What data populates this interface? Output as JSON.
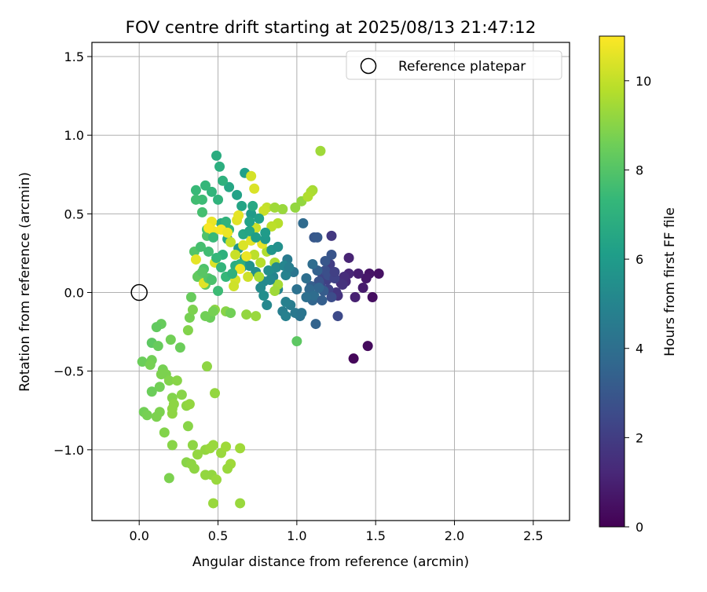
{
  "chart_data": {
    "type": "scatter",
    "title": "FOV centre drift starting at 2025/08/13 21:47:12",
    "xlabel": "Angular distance from reference (arcmin)",
    "ylabel": "Rotation from reference (arcmin)",
    "xlim": [
      -0.3,
      2.73
    ],
    "ylim": [
      -1.45,
      1.59
    ],
    "xticks": [
      0.0,
      0.5,
      1.0,
      1.5,
      2.0,
      2.5
    ],
    "xtick_labels": [
      "0.0",
      "0.5",
      "1.0",
      "1.5",
      "2.0",
      "2.5"
    ],
    "yticks": [
      -1.0,
      -0.5,
      0.0,
      0.5,
      1.0,
      1.5
    ],
    "ytick_labels": [
      "−1.0",
      "−0.5",
      "0.0",
      "0.5",
      "1.0",
      "1.5"
    ],
    "grid": true,
    "legend": {
      "position": "top-right",
      "entries": [
        {
          "label": "Reference platepar",
          "marker": "open-circle"
        }
      ]
    },
    "reference_point": {
      "x": 0.0,
      "y": 0.0
    },
    "colorbar": {
      "label": "Hours from first FF file",
      "range": [
        0,
        11
      ],
      "ticks": [
        0,
        2,
        4,
        6,
        8,
        10
      ],
      "tick_labels": [
        "0",
        "2",
        "4",
        "6",
        "8",
        "10"
      ],
      "colormap": "viridis"
    },
    "points": [
      {
        "x": 1.36,
        "y": -0.42,
        "t": 0.2
      },
      {
        "x": 1.45,
        "y": -0.34,
        "t": 0.3
      },
      {
        "x": 1.48,
        "y": -0.03,
        "t": 0.4
      },
      {
        "x": 1.52,
        "y": 0.12,
        "t": 0.5
      },
      {
        "x": 1.46,
        "y": 0.12,
        "t": 0.6
      },
      {
        "x": 1.44,
        "y": 0.09,
        "t": 0.7
      },
      {
        "x": 1.42,
        "y": 0.03,
        "t": 0.8
      },
      {
        "x": 1.39,
        "y": 0.12,
        "t": 0.9
      },
      {
        "x": 1.37,
        "y": -0.03,
        "t": 1.0
      },
      {
        "x": 1.33,
        "y": 0.22,
        "t": 1.1
      },
      {
        "x": 1.33,
        "y": 0.12,
        "t": 1.2
      },
      {
        "x": 1.31,
        "y": 0.07,
        "t": 1.3
      },
      {
        "x": 1.3,
        "y": 0.1,
        "t": 1.4
      },
      {
        "x": 1.28,
        "y": 0.06,
        "t": 1.5
      },
      {
        "x": 1.26,
        "y": -0.02,
        "t": 1.6
      },
      {
        "x": 1.25,
        "y": 0.0,
        "t": 1.7
      },
      {
        "x": 1.22,
        "y": 0.36,
        "t": 1.8
      },
      {
        "x": 1.21,
        "y": 0.14,
        "t": 1.9
      },
      {
        "x": 1.21,
        "y": 0.18,
        "t": 2.0
      },
      {
        "x": 1.19,
        "y": 0.08,
        "t": 2.1
      },
      {
        "x": 1.2,
        "y": 0.02,
        "t": 2.2
      },
      {
        "x": 1.16,
        "y": 0.12,
        "t": 2.3
      },
      {
        "x": 1.15,
        "y": 0.04,
        "t": 2.4
      },
      {
        "x": 1.26,
        "y": -0.15,
        "t": 2.5
      },
      {
        "x": 1.22,
        "y": -0.03,
        "t": 2.6
      },
      {
        "x": 1.18,
        "y": 0.14,
        "t": 2.7
      },
      {
        "x": 1.14,
        "y": 0.07,
        "t": 2.8
      },
      {
        "x": 1.22,
        "y": 0.24,
        "t": 2.9
      },
      {
        "x": 1.11,
        "y": 0.35,
        "t": 3.0
      },
      {
        "x": 1.13,
        "y": 0.35,
        "t": 3.1
      },
      {
        "x": 1.17,
        "y": 0.01,
        "t": 3.2
      },
      {
        "x": 1.09,
        "y": 0.04,
        "t": 3.3
      },
      {
        "x": 1.13,
        "y": 0.14,
        "t": 3.4
      },
      {
        "x": 1.12,
        "y": -0.2,
        "t": 3.5
      },
      {
        "x": 1.1,
        "y": -0.05,
        "t": 3.6
      },
      {
        "x": 1.08,
        "y": 0.02,
        "t": 3.7
      },
      {
        "x": 1.04,
        "y": 0.44,
        "t": 3.8
      },
      {
        "x": 1.1,
        "y": 0.18,
        "t": 3.9
      },
      {
        "x": 1.06,
        "y": 0.09,
        "t": 4.0
      },
      {
        "x": 1.0,
        "y": 0.02,
        "t": 4.1
      },
      {
        "x": 1.02,
        "y": -0.15,
        "t": 4.2
      },
      {
        "x": 0.98,
        "y": 0.13,
        "t": 4.3
      },
      {
        "x": 0.99,
        "y": -0.13,
        "t": 4.4
      },
      {
        "x": 0.94,
        "y": 0.21,
        "t": 4.5
      },
      {
        "x": 0.96,
        "y": -0.08,
        "t": 4.6
      },
      {
        "x": 0.91,
        "y": -0.12,
        "t": 4.7
      },
      {
        "x": 0.93,
        "y": -0.15,
        "t": 4.8
      },
      {
        "x": 0.88,
        "y": 0.02,
        "t": 4.9
      },
      {
        "x": 0.85,
        "y": 0.1,
        "t": 5.0
      },
      {
        "x": 0.81,
        "y": -0.08,
        "t": 5.1
      },
      {
        "x": 0.79,
        "y": 0.07,
        "t": 5.2
      },
      {
        "x": 0.77,
        "y": 0.03,
        "t": 5.3
      },
      {
        "x": 0.79,
        "y": -0.02,
        "t": 5.4
      },
      {
        "x": 0.74,
        "y": 0.13,
        "t": 5.5
      },
      {
        "x": 0.7,
        "y": 0.17,
        "t": 5.6
      },
      {
        "x": 0.67,
        "y": 0.22,
        "t": 5.7
      },
      {
        "x": 0.63,
        "y": 0.28,
        "t": 5.8
      },
      {
        "x": 0.65,
        "y": 0.16,
        "t": 5.9
      },
      {
        "x": 0.71,
        "y": 0.5,
        "t": 6.0
      },
      {
        "x": 0.73,
        "y": 0.41,
        "t": 6.1
      },
      {
        "x": 0.67,
        "y": 0.76,
        "t": 6.2
      },
      {
        "x": 0.62,
        "y": 0.62,
        "t": 6.3
      },
      {
        "x": 0.65,
        "y": 0.55,
        "t": 6.4
      },
      {
        "x": 0.57,
        "y": 0.67,
        "t": 6.5
      },
      {
        "x": 0.56,
        "y": 0.34,
        "t": 6.6
      },
      {
        "x": 0.52,
        "y": 0.44,
        "t": 6.7
      },
      {
        "x": 0.49,
        "y": 0.87,
        "t": 6.8
      },
      {
        "x": 0.51,
        "y": 0.8,
        "t": 6.9
      },
      {
        "x": 0.53,
        "y": 0.71,
        "t": 7.0
      },
      {
        "x": 0.5,
        "y": 0.59,
        "t": 7.1
      },
      {
        "x": 0.46,
        "y": 0.64,
        "t": 7.2
      },
      {
        "x": 0.42,
        "y": 0.68,
        "t": 7.3
      },
      {
        "x": 0.36,
        "y": 0.65,
        "t": 7.4
      },
      {
        "x": 0.4,
        "y": 0.59,
        "t": 7.5
      },
      {
        "x": 0.36,
        "y": 0.59,
        "t": 7.6
      },
      {
        "x": 0.4,
        "y": 0.51,
        "t": 7.7
      },
      {
        "x": 0.43,
        "y": 0.4,
        "t": 7.8
      },
      {
        "x": 0.43,
        "y": 0.36,
        "t": 7.9
      },
      {
        "x": 0.35,
        "y": 0.26,
        "t": 8.0
      },
      {
        "x": 0.38,
        "y": 0.11,
        "t": 8.1
      },
      {
        "x": 0.42,
        "y": 0.05,
        "t": 8.2
      },
      {
        "x": 0.37,
        "y": 0.1,
        "t": 8.3
      },
      {
        "x": 0.33,
        "y": -0.03,
        "t": 8.4
      },
      {
        "x": 0.45,
        "y": -0.16,
        "t": 8.5
      },
      {
        "x": 0.42,
        "y": -0.15,
        "t": 8.6
      },
      {
        "x": 0.32,
        "y": -0.16,
        "t": 8.7
      },
      {
        "x": 0.34,
        "y": -0.11,
        "t": 8.8
      },
      {
        "x": 0.31,
        "y": -0.24,
        "t": 8.9
      },
      {
        "x": 0.55,
        "y": -0.12,
        "t": 9.0
      },
      {
        "x": 0.48,
        "y": -0.11,
        "t": 9.1
      },
      {
        "x": 0.68,
        "y": -0.14,
        "t": 9.2
      },
      {
        "x": 0.74,
        "y": -0.15,
        "t": 9.3
      },
      {
        "x": 1.0,
        "y": -0.31,
        "t": 8.2
      },
      {
        "x": 1.03,
        "y": 0.58,
        "t": 9.2
      },
      {
        "x": 1.1,
        "y": 0.65,
        "t": 9.5
      },
      {
        "x": 1.15,
        "y": 0.9,
        "t": 9.4
      },
      {
        "x": 1.09,
        "y": 0.64,
        "t": 9.6
      },
      {
        "x": 1.07,
        "y": 0.61,
        "t": 9.7
      },
      {
        "x": 0.88,
        "y": 0.44,
        "t": 9.8
      },
      {
        "x": 0.84,
        "y": 0.42,
        "t": 9.9
      },
      {
        "x": 0.81,
        "y": 0.54,
        "t": 10.0
      },
      {
        "x": 0.79,
        "y": 0.52,
        "t": 10.1
      },
      {
        "x": 0.74,
        "y": 0.41,
        "t": 10.2
      },
      {
        "x": 0.71,
        "y": 0.74,
        "t": 10.3
      },
      {
        "x": 0.73,
        "y": 0.66,
        "t": 10.4
      },
      {
        "x": 0.62,
        "y": 0.46,
        "t": 10.5
      },
      {
        "x": 0.63,
        "y": 0.49,
        "t": 10.6
      },
      {
        "x": 0.46,
        "y": 0.45,
        "t": 10.7
      },
      {
        "x": 0.47,
        "y": 0.39,
        "t": 10.8
      },
      {
        "x": 0.44,
        "y": 0.41,
        "t": 10.9
      },
      {
        "x": 0.36,
        "y": 0.21,
        "t": 10.6
      },
      {
        "x": 0.41,
        "y": 0.06,
        "t": 10.5
      },
      {
        "x": 0.48,
        "y": 0.19,
        "t": 10.4
      },
      {
        "x": 0.61,
        "y": 0.08,
        "t": 10.3
      },
      {
        "x": 0.69,
        "y": 0.1,
        "t": 10.2
      },
      {
        "x": 0.61,
        "y": 0.24,
        "t": 10.1
      },
      {
        "x": 0.58,
        "y": 0.32,
        "t": 10.0
      },
      {
        "x": 0.73,
        "y": 0.24,
        "t": 9.9
      },
      {
        "x": 0.77,
        "y": 0.19,
        "t": 9.8
      },
      {
        "x": 0.81,
        "y": 0.26,
        "t": 9.7
      },
      {
        "x": 0.86,
        "y": 0.19,
        "t": 9.6
      },
      {
        "x": 0.88,
        "y": 0.05,
        "t": 9.5
      },
      {
        "x": 0.86,
        "y": 0.01,
        "t": 9.4
      },
      {
        "x": 0.76,
        "y": 0.1,
        "t": 9.6
      },
      {
        "x": 0.91,
        "y": 0.53,
        "t": 9.3
      },
      {
        "x": 0.99,
        "y": 0.54,
        "t": 9.2
      },
      {
        "x": 0.86,
        "y": 0.54,
        "t": 9.4
      },
      {
        "x": 0.2,
        "y": -0.3,
        "t": 8.6
      },
      {
        "x": 0.26,
        "y": -0.35,
        "t": 8.5
      },
      {
        "x": 0.14,
        "y": -0.2,
        "t": 8.4
      },
      {
        "x": 0.11,
        "y": -0.22,
        "t": 8.3
      },
      {
        "x": 0.08,
        "y": -0.32,
        "t": 8.2
      },
      {
        "x": 0.12,
        "y": -0.34,
        "t": 8.4
      },
      {
        "x": 0.02,
        "y": -0.44,
        "t": 8.5
      },
      {
        "x": 0.08,
        "y": -0.43,
        "t": 8.6
      },
      {
        "x": 0.07,
        "y": -0.46,
        "t": 8.7
      },
      {
        "x": 0.15,
        "y": -0.49,
        "t": 8.7
      },
      {
        "x": 0.17,
        "y": -0.52,
        "t": 8.8
      },
      {
        "x": 0.14,
        "y": -0.52,
        "t": 8.8
      },
      {
        "x": 0.19,
        "y": -0.56,
        "t": 8.9
      },
      {
        "x": 0.08,
        "y": -0.63,
        "t": 8.5
      },
      {
        "x": 0.13,
        "y": -0.6,
        "t": 8.6
      },
      {
        "x": 0.21,
        "y": -0.67,
        "t": 8.9
      },
      {
        "x": 0.24,
        "y": -0.56,
        "t": 9.0
      },
      {
        "x": 0.27,
        "y": -0.65,
        "t": 9.0
      },
      {
        "x": 0.22,
        "y": -0.71,
        "t": 9.1
      },
      {
        "x": 0.3,
        "y": -0.72,
        "t": 9.1
      },
      {
        "x": 0.32,
        "y": -0.71,
        "t": 9.2
      },
      {
        "x": 0.21,
        "y": -0.74,
        "t": 9.1
      },
      {
        "x": 0.21,
        "y": -0.77,
        "t": 9.1
      },
      {
        "x": 0.03,
        "y": -0.76,
        "t": 8.6
      },
      {
        "x": 0.05,
        "y": -0.78,
        "t": 8.7
      },
      {
        "x": 0.13,
        "y": -0.76,
        "t": 8.8
      },
      {
        "x": 0.11,
        "y": -0.79,
        "t": 8.8
      },
      {
        "x": 0.16,
        "y": -0.89,
        "t": 8.9
      },
      {
        "x": 0.31,
        "y": -0.85,
        "t": 9.0
      },
      {
        "x": 0.21,
        "y": -0.97,
        "t": 9.0
      },
      {
        "x": 0.34,
        "y": -0.97,
        "t": 9.1
      },
      {
        "x": 0.37,
        "y": -1.03,
        "t": 9.2
      },
      {
        "x": 0.42,
        "y": -1.0,
        "t": 9.2
      },
      {
        "x": 0.47,
        "y": -0.97,
        "t": 9.3
      },
      {
        "x": 0.45,
        "y": -0.99,
        "t": 9.3
      },
      {
        "x": 0.52,
        "y": -1.02,
        "t": 9.3
      },
      {
        "x": 0.55,
        "y": -0.98,
        "t": 9.4
      },
      {
        "x": 0.64,
        "y": -0.99,
        "t": 9.4
      },
      {
        "x": 0.58,
        "y": -1.09,
        "t": 9.4
      },
      {
        "x": 0.56,
        "y": -1.12,
        "t": 9.3
      },
      {
        "x": 0.3,
        "y": -1.08,
        "t": 9.0
      },
      {
        "x": 0.33,
        "y": -1.09,
        "t": 9.1
      },
      {
        "x": 0.35,
        "y": -1.12,
        "t": 9.1
      },
      {
        "x": 0.42,
        "y": -1.16,
        "t": 9.2
      },
      {
        "x": 0.46,
        "y": -1.16,
        "t": 9.2
      },
      {
        "x": 0.49,
        "y": -1.19,
        "t": 9.3
      },
      {
        "x": 0.19,
        "y": -1.18,
        "t": 8.8
      },
      {
        "x": 0.48,
        "y": -0.64,
        "t": 9.2
      },
      {
        "x": 0.43,
        "y": -0.47,
        "t": 9.1
      },
      {
        "x": 0.47,
        "y": -1.34,
        "t": 9.3
      },
      {
        "x": 0.64,
        "y": -1.34,
        "t": 9.3
      },
      {
        "x": 0.47,
        "y": -0.12,
        "t": 8.7
      },
      {
        "x": 0.58,
        "y": -0.13,
        "t": 8.6
      },
      {
        "x": 0.44,
        "y": 0.09,
        "t": 8.0
      },
      {
        "x": 0.46,
        "y": 0.08,
        "t": 7.8
      },
      {
        "x": 0.5,
        "y": 0.01,
        "t": 7.5
      },
      {
        "x": 0.55,
        "y": 0.1,
        "t": 7.3
      },
      {
        "x": 0.61,
        "y": 0.17,
        "t": 6.8
      },
      {
        "x": 0.64,
        "y": 0.18,
        "t": 6.9
      },
      {
        "x": 0.53,
        "y": 0.24,
        "t": 7.0
      },
      {
        "x": 0.57,
        "y": 0.4,
        "t": 7.2
      },
      {
        "x": 0.55,
        "y": 0.45,
        "t": 7.1
      },
      {
        "x": 0.47,
        "y": 0.35,
        "t": 7.4
      },
      {
        "x": 0.44,
        "y": 0.26,
        "t": 7.6
      },
      {
        "x": 0.39,
        "y": 0.29,
        "t": 7.7
      },
      {
        "x": 0.41,
        "y": 0.15,
        "t": 7.9
      },
      {
        "x": 0.4,
        "y": 0.13,
        "t": 8.1
      },
      {
        "x": 0.6,
        "y": 0.04,
        "t": 10.2
      },
      {
        "x": 0.66,
        "y": 0.3,
        "t": 10.4
      },
      {
        "x": 0.71,
        "y": 0.33,
        "t": 10.5
      },
      {
        "x": 0.78,
        "y": 0.31,
        "t": 10.6
      },
      {
        "x": 0.68,
        "y": 0.23,
        "t": 10.7
      },
      {
        "x": 0.64,
        "y": 0.15,
        "t": 10.8
      },
      {
        "x": 0.52,
        "y": 0.4,
        "t": 10.9
      },
      {
        "x": 0.56,
        "y": 0.38,
        "t": 10.7
      },
      {
        "x": 0.66,
        "y": 0.37,
        "t": 6.5
      },
      {
        "x": 0.7,
        "y": 0.39,
        "t": 6.4
      },
      {
        "x": 0.74,
        "y": 0.35,
        "t": 6.1
      },
      {
        "x": 0.8,
        "y": 0.34,
        "t": 5.9
      },
      {
        "x": 0.84,
        "y": 0.27,
        "t": 5.7
      },
      {
        "x": 0.88,
        "y": 0.29,
        "t": 5.5
      },
      {
        "x": 0.87,
        "y": 0.16,
        "t": 5.3
      },
      {
        "x": 0.92,
        "y": 0.17,
        "t": 5.0
      },
      {
        "x": 0.93,
        "y": -0.06,
        "t": 4.8
      },
      {
        "x": 1.03,
        "y": -0.13,
        "t": 4.3
      },
      {
        "x": 1.11,
        "y": -0.02,
        "t": 3.9
      },
      {
        "x": 1.14,
        "y": 0.03,
        "t": 3.6
      },
      {
        "x": 1.16,
        "y": -0.05,
        "t": 3.3
      },
      {
        "x": 1.18,
        "y": 0.2,
        "t": 3.0
      },
      {
        "x": 1.2,
        "y": 0.11,
        "t": 2.7
      },
      {
        "x": 1.24,
        "y": 0.09,
        "t": 2.2
      },
      {
        "x": 1.24,
        "y": 0.13,
        "t": 2.1
      },
      {
        "x": 1.29,
        "y": 0.05,
        "t": 1.6
      },
      {
        "x": 0.72,
        "y": 0.55,
        "t": 6.6
      },
      {
        "x": 0.7,
        "y": 0.45,
        "t": 6.3
      },
      {
        "x": 0.76,
        "y": 0.47,
        "t": 6.2
      },
      {
        "x": 0.8,
        "y": 0.38,
        "t": 6.0
      },
      {
        "x": 0.59,
        "y": 0.12,
        "t": 7.0
      },
      {
        "x": 0.52,
        "y": 0.16,
        "t": 7.2
      },
      {
        "x": 0.49,
        "y": 0.22,
        "t": 7.3
      },
      {
        "x": 0.93,
        "y": 0.11,
        "t": 4.9
      },
      {
        "x": 0.95,
        "y": 0.16,
        "t": 4.7
      },
      {
        "x": 1.06,
        "y": -0.03,
        "t": 4.0
      },
      {
        "x": 0.82,
        "y": 0.14,
        "t": 5.4
      },
      {
        "x": 0.83,
        "y": 0.08,
        "t": 5.2
      }
    ]
  }
}
